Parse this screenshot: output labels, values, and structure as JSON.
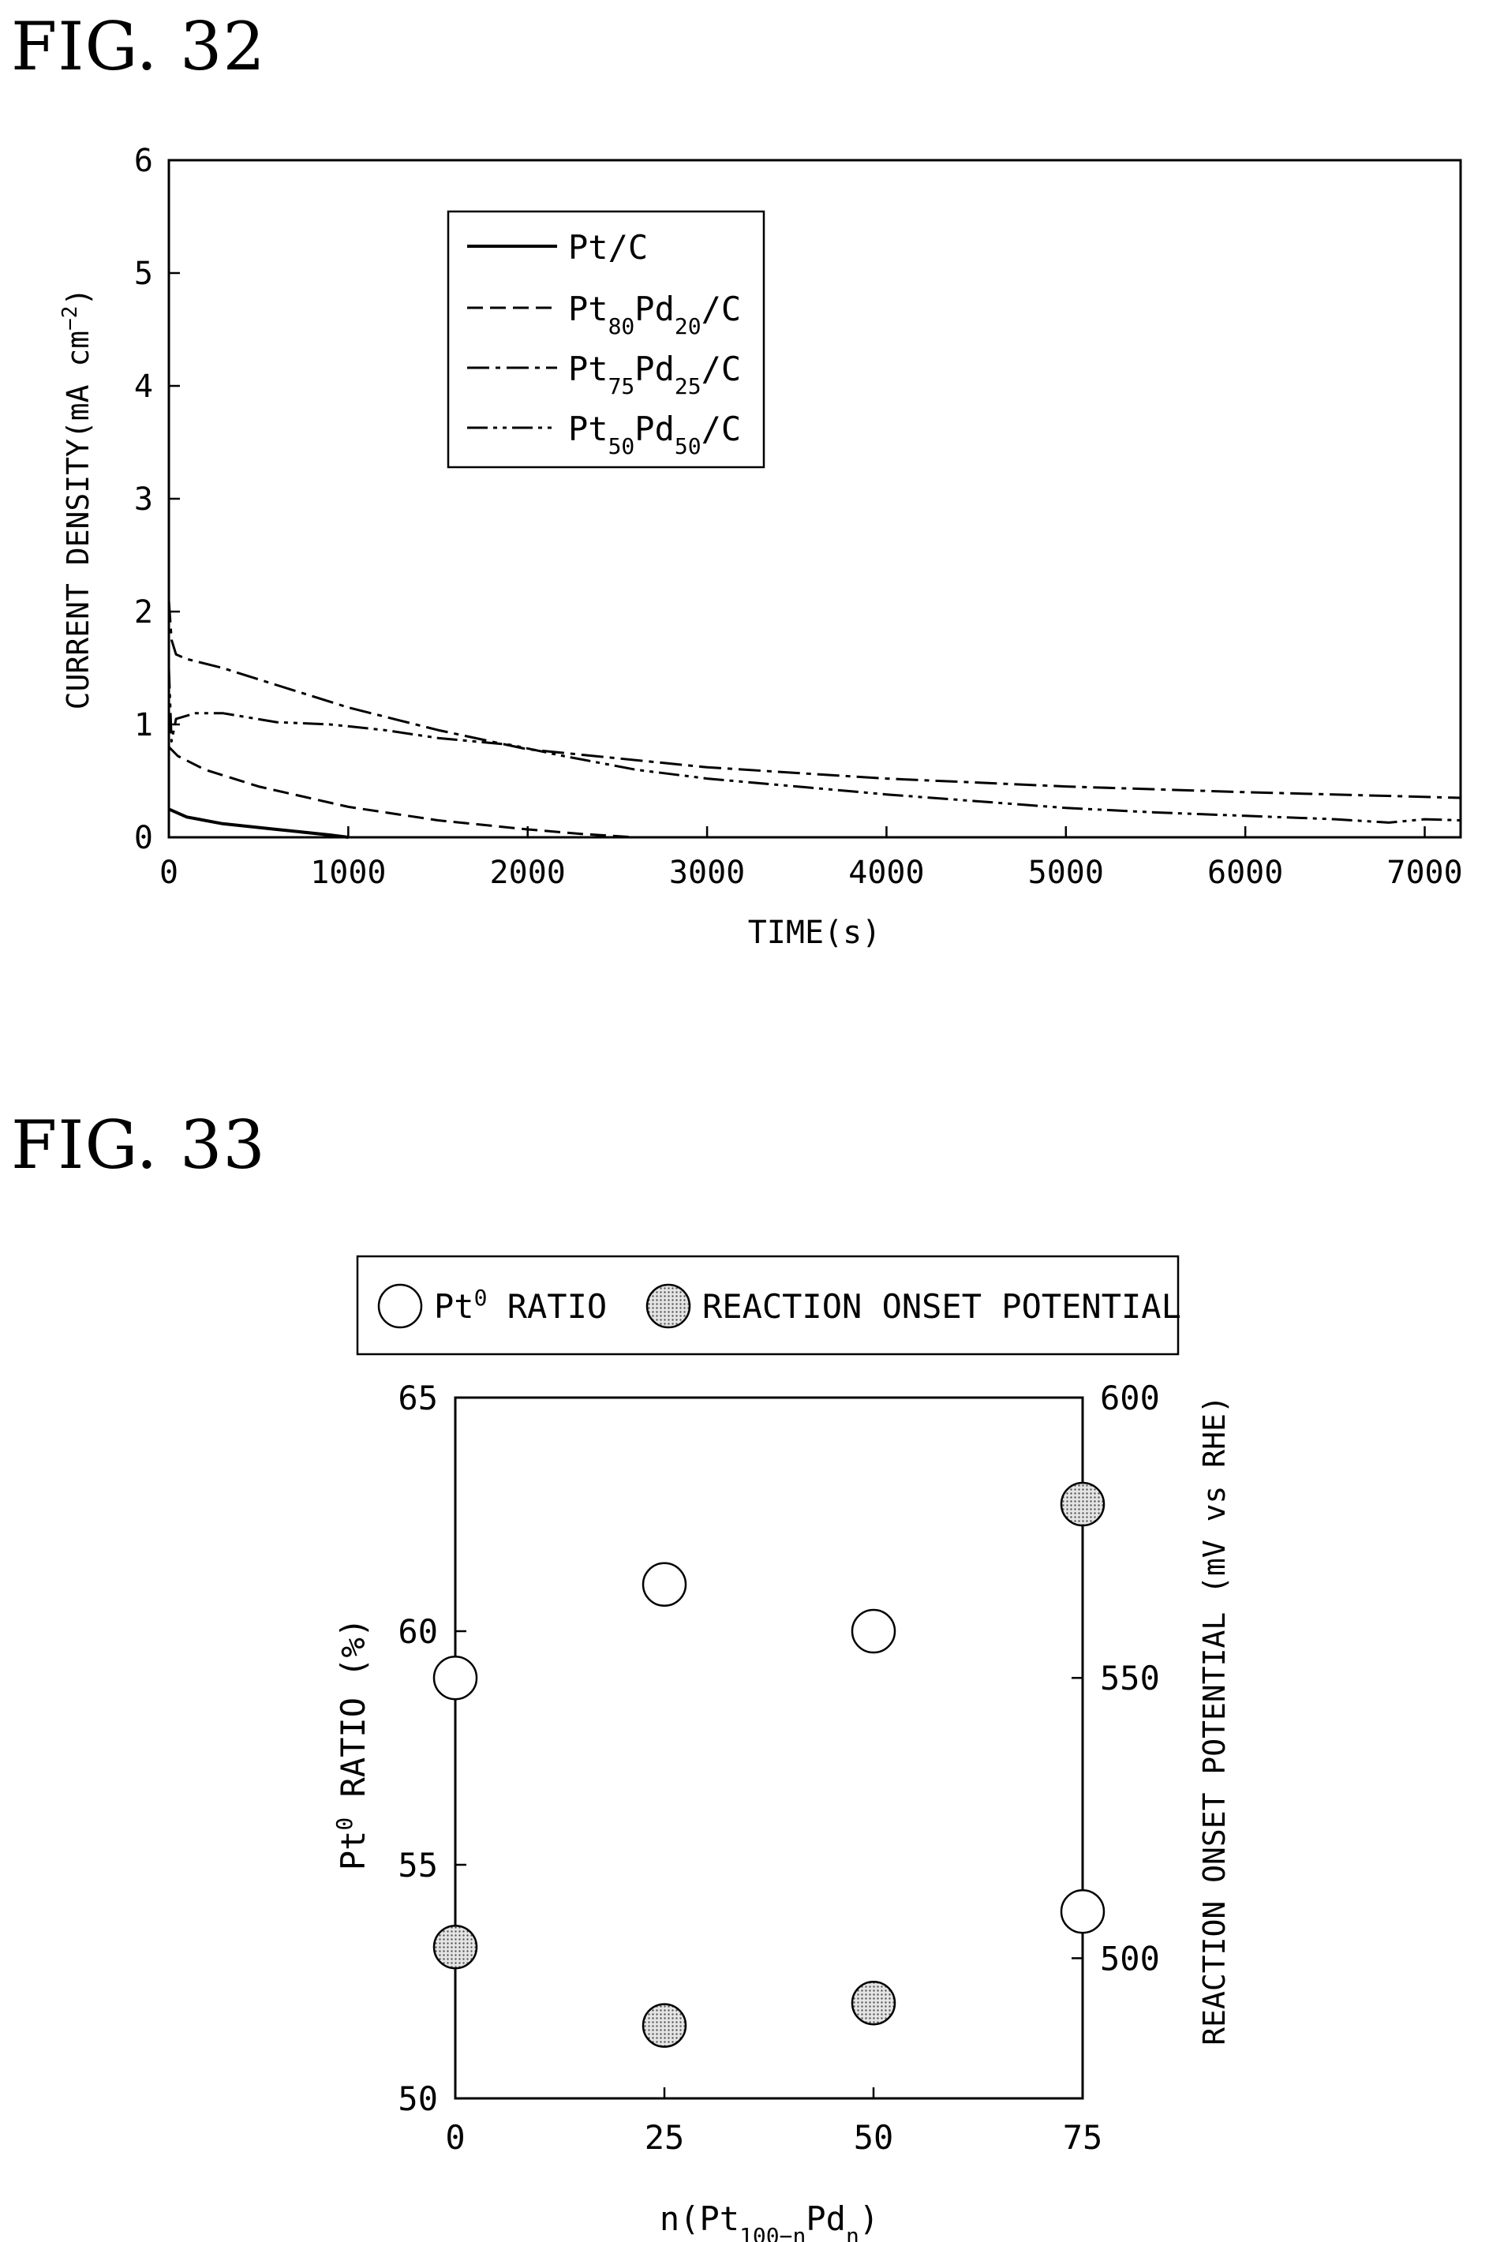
{
  "figures": [
    {
      "label": "FIG. 32"
    },
    {
      "label": "FIG. 33"
    }
  ],
  "chart_data": [
    {
      "type": "line",
      "xlabel": "TIME(s)",
      "ylabel_main": "CURRENT DENSITY(mA cm",
      "ylabel_sup": "−2",
      "ylabel_close": ")",
      "xlim": [
        0,
        7200
      ],
      "ylim": [
        0,
        6
      ],
      "xticks": [
        "0",
        "1000",
        "2000",
        "3000",
        "4000",
        "5000",
        "6000",
        "7000"
      ],
      "yticks": [
        "0",
        "1",
        "2",
        "3",
        "4",
        "5",
        "6"
      ],
      "legend_position": "top-left",
      "legend": [
        {
          "main": "Pt/C",
          "style": "solid"
        },
        {
          "main": "Pt",
          "sub1": "80",
          "mid": "Pd",
          "sub2": "20",
          "tail": "/C",
          "style": "dashed"
        },
        {
          "main": "Pt",
          "sub1": "75",
          "mid": "Pd",
          "sub2": "25",
          "tail": "/C",
          "style": "dashdot"
        },
        {
          "main": "Pt",
          "sub1": "50",
          "mid": "Pd",
          "sub2": "50",
          "tail": "/C",
          "style": "dashdotdot"
        }
      ],
      "series": [
        {
          "name": "Pt/C",
          "style": "solid",
          "x": [
            0,
            100,
            300,
            600,
            900,
            1000
          ],
          "y": [
            0.25,
            0.18,
            0.12,
            0.07,
            0.02,
            0.0
          ]
        },
        {
          "name": "Pt80Pd20/C",
          "style": "dashed",
          "x": [
            0,
            50,
            200,
            500,
            1000,
            1500,
            2000,
            2300,
            2600
          ],
          "y": [
            0.8,
            0.72,
            0.6,
            0.45,
            0.27,
            0.15,
            0.07,
            0.03,
            0.0
          ]
        },
        {
          "name": "Pt75Pd25/C",
          "style": "dashdot",
          "x": [
            0,
            15,
            40,
            100,
            300,
            600,
            1000,
            1500,
            2000,
            3000,
            4000,
            5000,
            6000,
            7200
          ],
          "y": [
            2.1,
            1.75,
            1.62,
            1.58,
            1.5,
            1.35,
            1.15,
            0.95,
            0.78,
            0.62,
            0.52,
            0.45,
            0.4,
            0.35
          ]
        },
        {
          "name": "Pt50Pd50/C",
          "style": "dashdotdot",
          "x": [
            0,
            15,
            40,
            150,
            300,
            600,
            900,
            1200,
            1500,
            1900,
            2200,
            2600,
            3000,
            3500,
            4000,
            4500,
            5000,
            5500,
            6000,
            6500,
            6800,
            7000,
            7200
          ],
          "y": [
            1.5,
            0.85,
            1.05,
            1.1,
            1.1,
            1.02,
            1.0,
            0.95,
            0.88,
            0.82,
            0.72,
            0.6,
            0.52,
            0.45,
            0.38,
            0.32,
            0.26,
            0.22,
            0.19,
            0.16,
            0.13,
            0.16,
            0.15
          ]
        }
      ]
    },
    {
      "type": "scatter",
      "xlabel_main": "n(Pt",
      "xlabel_sub1": "100−n",
      "xlabel_mid": "Pd",
      "xlabel_sub2": "n",
      "xlabel_close": ")",
      "ylabel_left_main": "Pt",
      "ylabel_left_sup": "0",
      "ylabel_left_rest": " RATIO (%)",
      "ylabel_right": "REACTION ONSET POTENTIAL (mV vs RHE)",
      "xlim": [
        0,
        75
      ],
      "ylim_left": [
        50,
        65
      ],
      "ylim_right": [
        475,
        600
      ],
      "xticks": [
        "0",
        "25",
        "50",
        "75"
      ],
      "yticks_left": [
        "50",
        "55",
        "60",
        "65"
      ],
      "yticks_right": [
        "500",
        "550",
        "600"
      ],
      "legend_position": "top",
      "legend": [
        {
          "main": "Pt",
          "sup": "0",
          "rest": " RATIO",
          "marker": "open-circle"
        },
        {
          "main": "REACTION ONSET POTENTIAL",
          "marker": "shaded-circle"
        }
      ],
      "series": [
        {
          "name": "Pt0 RATIO",
          "axis": "left",
          "x": [
            0,
            25,
            50,
            75
          ],
          "y": [
            59,
            61,
            60,
            54
          ]
        },
        {
          "name": "REACTION ONSET POTENTIAL",
          "axis": "right",
          "x": [
            0,
            25,
            50,
            75
          ],
          "y": [
            502,
            488,
            492,
            581
          ]
        }
      ]
    }
  ]
}
